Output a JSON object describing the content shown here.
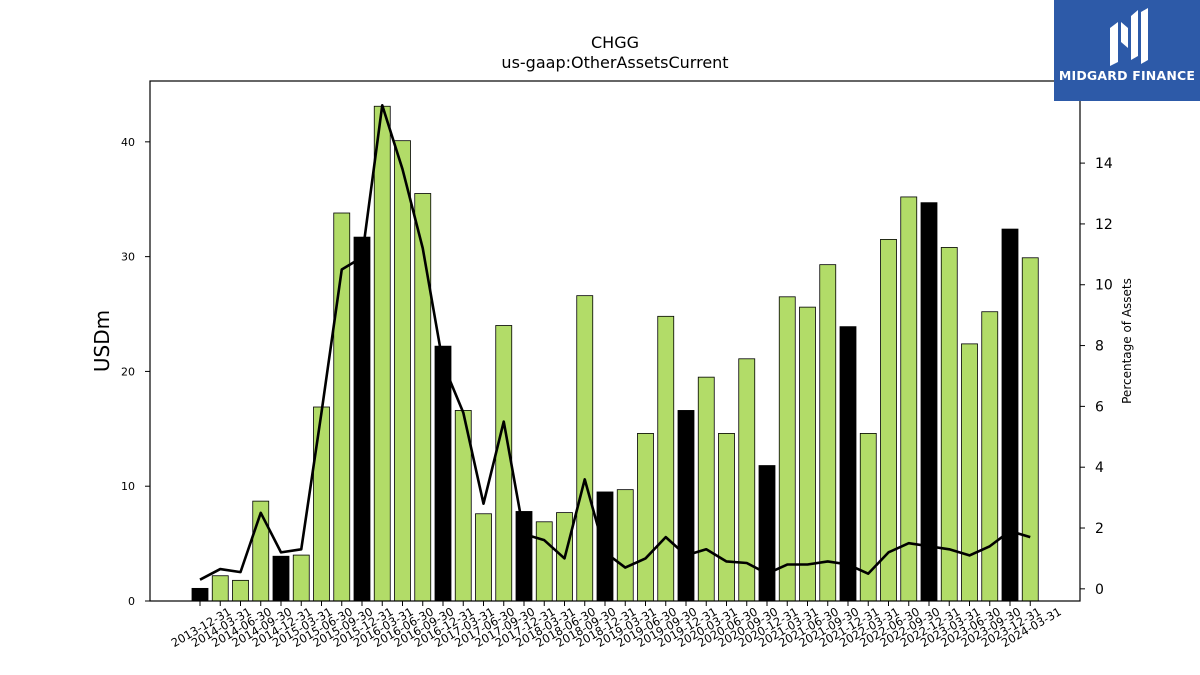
{
  "chart_data": {
    "type": "bar",
    "title": "CHGG",
    "subtitle": "us-gaap:OtherAssetsCurrent",
    "ylabel": "USDm",
    "y2label": "Percentage of Assets",
    "ylim": [
      0,
      45.3
    ],
    "y2lim": [
      -0.4,
      16.7
    ],
    "yticks": [
      0,
      10,
      20,
      30,
      40
    ],
    "y2ticks": [
      0,
      2,
      4,
      6,
      8,
      10,
      12,
      14
    ],
    "grid": false,
    "categories": [
      "2013-12-31",
      "2014-03-31",
      "2014-06-30",
      "2014-09-30",
      "2014-12-31",
      "2015-03-31",
      "2015-06-30",
      "2015-09-30",
      "2015-12-31",
      "2016-03-31",
      "2016-06-30",
      "2016-09-30",
      "2016-12-31",
      "2017-03-31",
      "2017-06-30",
      "2017-09-30",
      "2017-12-31",
      "2018-03-31",
      "2018-06-30",
      "2018-09-30",
      "2018-12-31",
      "2019-03-31",
      "2019-06-30",
      "2019-09-30",
      "2019-12-31",
      "2020-03-31",
      "2020-06-30",
      "2020-09-30",
      "2020-12-31",
      "2021-03-31",
      "2021-06-30",
      "2021-09-30",
      "2021-12-31",
      "2022-03-31",
      "2022-06-30",
      "2022-09-30",
      "2022-12-31",
      "2023-03-31",
      "2023-06-30",
      "2023-09-30",
      "2023-12-31",
      "2024-03-31"
    ],
    "series": [
      {
        "values": [
          1.1,
          2.2,
          1.8,
          8.7,
          3.9,
          4.0,
          16.9,
          33.8,
          31.7,
          43.1,
          40.1,
          35.5,
          22.2,
          16.6,
          7.6,
          24.0,
          7.8,
          6.9,
          7.7,
          26.6,
          9.5,
          9.7,
          14.6,
          24.8,
          16.6,
          19.5,
          14.6,
          21.1,
          11.8,
          26.5,
          25.6,
          29.3,
          23.9,
          14.6,
          31.5,
          35.2,
          34.7,
          30.8,
          22.4,
          25.2,
          32.4,
          29.9
        ],
        "highlight": [
          true,
          false,
          false,
          false,
          true,
          false,
          false,
          false,
          true,
          false,
          false,
          false,
          true,
          false,
          false,
          false,
          true,
          false,
          false,
          false,
          true,
          false,
          false,
          false,
          true,
          false,
          false,
          false,
          true,
          false,
          false,
          false,
          true,
          false,
          false,
          false,
          true,
          false,
          false,
          false,
          true,
          false
        ]
      },
      {
        "axis": "right",
        "type": "line",
        "values": [
          0.3,
          0.65,
          0.55,
          2.5,
          1.2,
          1.3,
          5.8,
          10.5,
          10.9,
          15.9,
          13.8,
          11.2,
          7.4,
          5.8,
          2.8,
          5.5,
          1.8,
          1.6,
          1.0,
          3.6,
          1.2,
          0.7,
          1.0,
          1.7,
          1.1,
          1.3,
          0.9,
          0.85,
          0.5,
          0.8,
          0.8,
          0.9,
          0.8,
          0.5,
          1.2,
          1.5,
          1.4,
          1.3,
          1.1,
          1.4,
          1.9,
          1.7
        ]
      }
    ],
    "colors": {
      "bar": "#b2dc68",
      "bar_highlight": "#000000",
      "bar_edge": "#000000",
      "line": "#000000"
    }
  },
  "logo": {
    "text": "MIDGARD FINANCE",
    "background": "#2d5aa8"
  }
}
